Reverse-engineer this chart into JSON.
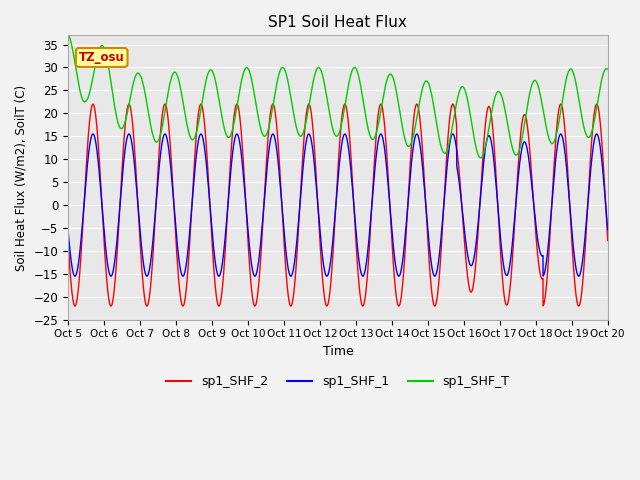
{
  "title": "SP1 Soil Heat Flux",
  "xlabel": "Time",
  "ylabel": "Soil Heat Flux (W/m2), SoilT (C)",
  "ylim": [
    -25,
    37
  ],
  "yticks": [
    -25,
    -20,
    -15,
    -10,
    -5,
    0,
    5,
    10,
    15,
    20,
    25,
    30,
    35
  ],
  "xlim_days": [
    0,
    15
  ],
  "xtick_labels": [
    "Oct 5",
    "Oct 6",
    "Oct 7",
    "Oct 8",
    "Oct 9",
    "Oct 10",
    "Oct 11",
    "Oct 12",
    "Oct 13",
    "Oct 14",
    "Oct 15",
    "Oct 16",
    "Oct 17",
    "Oct 18",
    "Oct 19",
    "Oct 20"
  ],
  "legend_labels": [
    "sp1_SHF_2",
    "sp1_SHF_1",
    "sp1_SHF_T"
  ],
  "line_colors": [
    "#ff0000",
    "#0000ff",
    "#00cc00"
  ],
  "background_color": "#e8e8e8",
  "fig_background": "#f2f2f2",
  "annotation_text": "TZ_osu",
  "annotation_fg": "#cc0000",
  "annotation_bg": "#ffff99",
  "annotation_border": "#cc8800",
  "grid_color": "#ffffff"
}
